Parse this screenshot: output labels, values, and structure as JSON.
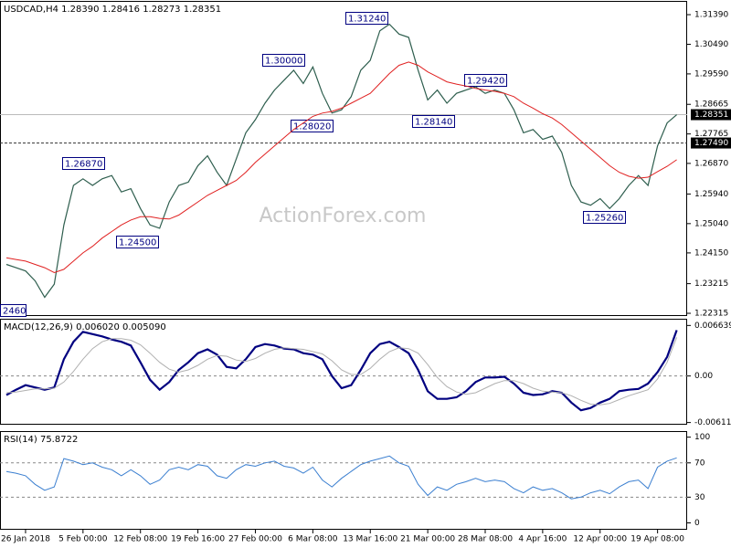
{
  "chart_data": [
    {
      "type": "line",
      "title": "USDCAD,H4 1.28390 1.28416 1.28273 1.28351",
      "watermark": "ActionForex.com",
      "categories": [
        null,
        null,
        "26 Jan 2018",
        null,
        null,
        null,
        null,
        null,
        "5 Feb 00:00",
        null,
        null,
        null,
        null,
        null,
        "12 Feb 08:00",
        null,
        null,
        null,
        null,
        null,
        "19 Feb 16:00",
        null,
        null,
        null,
        null,
        null,
        "27 Feb 00:00",
        null,
        null,
        null,
        null,
        null,
        "6 Mar 08:00",
        null,
        null,
        null,
        null,
        null,
        "13 Mar 16:00",
        null,
        null,
        null,
        null,
        null,
        "21 Mar 00:00",
        null,
        null,
        null,
        null,
        null,
        "28 Mar 08:00",
        null,
        null,
        null,
        null,
        null,
        "4 Apr 16:00",
        null,
        null,
        null,
        null,
        null,
        "12 Apr 00:00",
        null,
        null,
        null,
        null,
        null,
        "19 Apr 08:00",
        null,
        null
      ],
      "series": [
        {
          "color": "#2e5e4e",
          "values": [
            1.238,
            1.237,
            1.236,
            1.233,
            1.228,
            1.232,
            1.25,
            1.262,
            1.264,
            1.262,
            1.264,
            1.265,
            1.26,
            1.261,
            1.255,
            1.25,
            1.249,
            1.257,
            1.262,
            1.263,
            1.268,
            1.271,
            1.266,
            1.262,
            1.27,
            1.278,
            1.282,
            1.287,
            1.291,
            1.294,
            1.297,
            1.293,
            1.298,
            1.29,
            1.284,
            1.285,
            1.289,
            1.297,
            1.3,
            1.309,
            1.311,
            1.308,
            1.307,
            1.297,
            1.288,
            1.291,
            1.287,
            1.29,
            1.291,
            1.292,
            1.29,
            1.291,
            1.29,
            1.285,
            1.278,
            1.279,
            1.276,
            1.277,
            1.272,
            1.262,
            1.257,
            1.256,
            1.258,
            1.255,
            1.258,
            1.262,
            1.265,
            1.262,
            1.274,
            1.281,
            1.2835
          ]
        },
        {
          "color": "#e02020",
          "values": [
            1.24,
            1.2395,
            1.239,
            1.238,
            1.237,
            1.2355,
            1.2365,
            1.239,
            1.2415,
            1.2435,
            1.246,
            1.248,
            1.25,
            1.2515,
            1.2525,
            1.2525,
            1.252,
            1.2518,
            1.253,
            1.255,
            1.257,
            1.259,
            1.2605,
            1.262,
            1.2635,
            1.266,
            1.269,
            1.2715,
            1.274,
            1.2765,
            1.279,
            1.281,
            1.283,
            1.284,
            1.2845,
            1.2855,
            1.287,
            1.2885,
            1.29,
            1.293,
            1.296,
            1.2985,
            1.2995,
            1.2985,
            1.2965,
            1.295,
            1.2935,
            1.2928,
            1.2922,
            1.2915,
            1.291,
            1.2906,
            1.29,
            1.289,
            1.287,
            1.2855,
            1.2838,
            1.2825,
            1.2805,
            1.278,
            1.2755,
            1.273,
            1.2705,
            1.268,
            1.266,
            1.2648,
            1.2642,
            1.2645,
            1.2662,
            1.2678,
            1.2698
          ]
        }
      ],
      "ylim": [
        1.2226,
        1.3178
      ],
      "yticks": [
        {
          "value": 1.3139,
          "label": "1.31390"
        },
        {
          "value": 1.3049,
          "label": "1.30490"
        },
        {
          "value": 1.2959,
          "label": "1.29590"
        },
        1.28665,
        1.27765,
        {
          "value": 1.2687,
          "label": "1.26870"
        },
        {
          "value": 1.2594,
          "label": "1.25940"
        },
        {
          "value": 1.2504,
          "label": "1.25040"
        },
        {
          "value": 1.2415,
          "label": "1.24150"
        },
        1.23215,
        1.22315
      ],
      "price_line": 1.28351,
      "level_line": {
        "value": 1.2749,
        "label": "1.27490"
      },
      "annotations": [
        "1.31240",
        "1.30000",
        "1.29420",
        "1.28020",
        "1.28140",
        "1.26870",
        "1.24500",
        "1.25260",
        "2460"
      ]
    },
    {
      "type": "line",
      "title": "MACD(12,26,9) 0.006020 0.005090",
      "series": [
        {
          "color": "#000080",
          "values": [
            -0.0025,
            -0.0018,
            -0.0012,
            -0.0015,
            -0.0018,
            -0.0015,
            0.0022,
            0.0045,
            0.0058,
            0.0055,
            0.0052,
            0.0048,
            0.0045,
            0.004,
            0.0018,
            -0.0005,
            -0.0018,
            -0.0008,
            0.0008,
            0.0018,
            0.003,
            0.0035,
            0.0028,
            0.0012,
            0.001,
            0.0022,
            0.0038,
            0.0042,
            0.004,
            0.0036,
            0.0035,
            0.003,
            0.0028,
            0.0022,
            0.0,
            -0.0016,
            -0.0012,
            0.0008,
            0.003,
            0.0042,
            0.0045,
            0.0038,
            0.003,
            0.0008,
            -0.002,
            -0.003,
            -0.003,
            -0.0028,
            -0.002,
            -0.0008,
            -0.0002,
            -0.0002,
            -0.0001,
            -0.001,
            -0.0022,
            -0.0025,
            -0.0024,
            -0.002,
            -0.0022,
            -0.0035,
            -0.0045,
            -0.0042,
            -0.0035,
            -0.003,
            -0.002,
            -0.0018,
            -0.0017,
            -0.001,
            0.0005,
            0.0025,
            0.00602
          ]
        },
        {
          "color": "#b0b0b0",
          "values": [
            -0.0022,
            -0.0021,
            -0.0019,
            -0.0017,
            -0.0017,
            -0.0016,
            -0.0008,
            0.0006,
            0.0022,
            0.0036,
            0.0045,
            0.0049,
            0.0049,
            0.0047,
            0.0041,
            0.003,
            0.0018,
            0.0009,
            0.0005,
            0.0008,
            0.0014,
            0.0022,
            0.0027,
            0.0026,
            0.0021,
            0.0019,
            0.0023,
            0.003,
            0.0035,
            0.0037,
            0.0036,
            0.0035,
            0.0032,
            0.0029,
            0.002,
            0.0008,
            0.0002,
            0.0002,
            0.001,
            0.0022,
            0.0032,
            0.0037,
            0.0036,
            0.003,
            0.0015,
            -0.0002,
            -0.0014,
            -0.0021,
            -0.0024,
            -0.0022,
            -0.0016,
            -0.001,
            -0.0006,
            -0.0006,
            -0.001,
            -0.0016,
            -0.002,
            -0.0021,
            -0.0022,
            -0.0026,
            -0.0032,
            -0.0037,
            -0.0038,
            -0.0036,
            -0.0031,
            -0.0026,
            -0.0022,
            -0.0018,
            -0.0004,
            0.0018,
            0.00509
          ]
        }
      ],
      "ylim": [
        -0.0064,
        0.0074
      ],
      "yticks": [
        0.006639,
        {
          "value": 0,
          "label": "0.00"
        },
        -0.006114
      ],
      "levels": [
        0
      ]
    },
    {
      "type": "line",
      "title": "RSI(14) 75.8722",
      "series": [
        {
          "color": "#3b7fd0",
          "values": [
            60,
            58,
            55,
            45,
            38,
            42,
            75,
            72,
            68,
            70,
            65,
            62,
            55,
            62,
            55,
            45,
            50,
            62,
            65,
            62,
            68,
            66,
            55,
            52,
            62,
            68,
            66,
            70,
            72,
            66,
            64,
            58,
            65,
            50,
            42,
            52,
            60,
            68,
            72,
            75,
            78,
            70,
            66,
            45,
            32,
            42,
            38,
            45,
            48,
            52,
            48,
            50,
            48,
            40,
            35,
            42,
            38,
            40,
            35,
            28,
            30,
            35,
            38,
            34,
            42,
            48,
            50,
            40,
            65,
            72,
            75.8722
          ]
        }
      ],
      "ylim": [
        -8,
        106
      ],
      "yticks": [
        100,
        70,
        30,
        0
      ],
      "levels": [
        70,
        30
      ]
    }
  ]
}
